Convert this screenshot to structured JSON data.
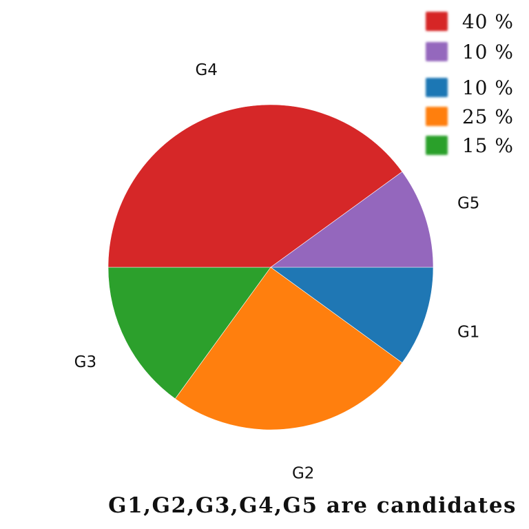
{
  "chart_data": {
    "type": "pie",
    "slices": [
      {
        "label": "G1",
        "value": 10,
        "legend": "10 %",
        "color": "#1f77b4"
      },
      {
        "label": "G2",
        "value": 25,
        "legend": "25 %",
        "color": "#ff7f0e"
      },
      {
        "label": "G3",
        "value": 15,
        "legend": "15 %",
        "color": "#2ca02c"
      },
      {
        "label": "G4",
        "value": 40,
        "legend": "40 %",
        "color": "#d62728"
      },
      {
        "label": "G5",
        "value": 10,
        "legend": "10 %",
        "color": "#9467bd"
      }
    ],
    "legend_order": [
      "G4",
      "G5",
      "G1",
      "G2",
      "G3"
    ],
    "legend_placement": "top-right",
    "start_angle_deg": 0,
    "direction": "clockwise",
    "caption": "G1,G2,G3,G4,G5 are candidates"
  }
}
